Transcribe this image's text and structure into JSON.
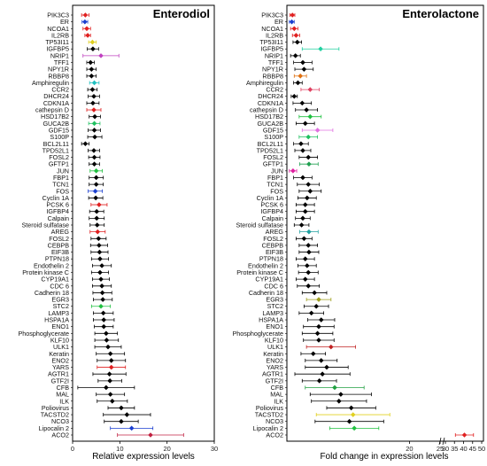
{
  "chart_data": [
    {
      "type": "scatter",
      "title": "Enterodiol",
      "xlabel": "Relative expression levels",
      "xlim": [
        0,
        30
      ],
      "xticks": [
        "0",
        "10",
        "20",
        "30"
      ],
      "categories": [
        "PIK3C3",
        "ER",
        "NCOA1",
        "IL2RB",
        "TP53I11",
        "IGFBP5",
        "NRIP1",
        "TFF1",
        "NPY1R",
        "RBBP8",
        "Amphiregulin",
        "CCR2",
        "DHCR24",
        "CDKN1A",
        "cathepsin D",
        "HSD17B2",
        "GUCA2B",
        "GDF15",
        "S100P",
        "BCL2L11",
        "TPD52L1",
        "FOSL2",
        "GFTP1",
        "JUN",
        "FBP1",
        "TCN1",
        "FOS",
        "Cyclin 1A",
        "PCSK 6",
        "IGFBP4",
        "Calpain",
        "Steroid sulfatase",
        "AREG",
        "FOSL2",
        "CEBPB",
        "EIF3B",
        "PTPN18",
        "Endothelin 2",
        "Protein kinase C",
        "CYP19A1",
        "CDC 6",
        "Cadherin 18",
        "EGR3",
        "STC2",
        "LAMP3",
        "HSPA1A",
        "ENO1",
        "Phosphoglycerate",
        "KLF10",
        "ULK1",
        "Keratin",
        "ENO2",
        "YARS",
        "AGTR1",
        "GTF2I",
        "CFB",
        "MAL",
        "ILK",
        "Poliovirus",
        "TACSTD2",
        "NCO3",
        "Lipocalin 2",
        "ACO2"
      ],
      "values": [
        2.7,
        2.6,
        3.0,
        3.2,
        4.2,
        4.3,
        6.0,
        3.8,
        4.0,
        4.0,
        4.6,
        4.2,
        4.5,
        4.3,
        4.5,
        4.7,
        4.6,
        4.6,
        4.7,
        2.7,
        4.5,
        4.6,
        4.6,
        5.0,
        5.0,
        5.0,
        4.8,
        4.9,
        5.6,
        5.1,
        5.1,
        5.2,
        5.3,
        5.5,
        5.6,
        5.7,
        5.8,
        6.2,
        5.8,
        6.0,
        6.2,
        6.3,
        6.4,
        6.0,
        6.5,
        6.6,
        6.6,
        7.1,
        7.2,
        7.5,
        8.0,
        8.2,
        8.2,
        7.8,
        7.9,
        7.1,
        8.0,
        8.4,
        10.3,
        11.5,
        10.3,
        12.5,
        16.5
      ],
      "err": [
        0.8,
        0.6,
        0.8,
        0.6,
        0.8,
        1.2,
        3.8,
        0.8,
        1.0,
        1.0,
        1.0,
        1.0,
        1.2,
        1.3,
        1.5,
        1.2,
        1.2,
        1.3,
        1.5,
        0.8,
        1.2,
        1.2,
        1.1,
        1.3,
        1.5,
        1.5,
        1.5,
        1.5,
        1.7,
        1.5,
        1.6,
        1.5,
        1.6,
        1.6,
        1.8,
        1.8,
        1.8,
        2.0,
        1.8,
        1.8,
        2.0,
        2.0,
        2.0,
        2.0,
        2.1,
        2.2,
        2.0,
        2.4,
        2.5,
        2.8,
        3.0,
        3.0,
        3.0,
        3.5,
        2.5,
        6.0,
        3.0,
        3.2,
        2.8,
        5.0,
        3.6,
        4.5,
        7.0
      ],
      "colors": [
        "#e02020",
        "#1a3fd0",
        "#e02020",
        "#e02020",
        "#e0d020",
        "#000000",
        "#c040c0",
        "#000000",
        "#000000",
        "#000000",
        "#20c0c0",
        "#000000",
        "#000000",
        "#000000",
        "#e02020",
        "#000000",
        "#20c060",
        "#000000",
        "#000000",
        "#000000",
        "#000000",
        "#000000",
        "#000000",
        "#20c040",
        "#000000",
        "#000000",
        "#1a3fd0",
        "#000000",
        "#e02020",
        "#000000",
        "#000000",
        "#000000",
        "#e02020",
        "#000000",
        "#000000",
        "#000000",
        "#000000",
        "#000000",
        "#000000",
        "#000000",
        "#000000",
        "#000000",
        "#000000",
        "#20c040",
        "#000000",
        "#000000",
        "#000000",
        "#000000",
        "#000000",
        "#000000",
        "#000000",
        "#000000",
        "#e02020",
        "#000000",
        "#000000",
        "#000000",
        "#000000",
        "#000000",
        "#000000",
        "#000000",
        "#000000",
        "#1a3fd0",
        "#c02040"
      ],
      "grid": false
    },
    {
      "type": "scatter",
      "title": "Enterolactone",
      "xlabel": "Fold change in expression levels",
      "xlim": [
        0,
        50
      ],
      "broken_axis": [
        25,
        30
      ],
      "xticks": [
        "20",
        "25",
        "30",
        "35",
        "40",
        "45",
        "50"
      ],
      "categories": [
        "PIK3C3",
        "ER",
        "NCOA1",
        "IL2RB",
        "TP53I11",
        "IGFBP5",
        "NRIP1",
        "TFF1",
        "NPY1R",
        "RBBP8",
        "Amphiregulin",
        "CCR2",
        "DHCR24",
        "CDKN1A",
        "cathepsin D",
        "HSD17B2",
        "GUCA2B",
        "GDF15",
        "S100P",
        "BCL2L11",
        "TPD52L1",
        "FOSL2",
        "GFTP1",
        "JUN",
        "FBP1",
        "TCN1",
        "FOS",
        "Cyclin 1A",
        "PCSK 6",
        "IGFBP4",
        "Calpain",
        "Steroid sulfatase",
        "AREG",
        "FOSL2",
        "CEBPB",
        "EIF3B",
        "PTPN18",
        "Endothelin 2",
        "Protein kinase C",
        "CYP19A1",
        "CDC 6",
        "Cadherin 18",
        "EGR3",
        "STC2",
        "LAMP3",
        "HSPA1A",
        "ENO1",
        "Phosphoglycerate",
        "KLF10",
        "ULK1",
        "Keratin",
        "ENO2",
        "YARS",
        "AGTR1",
        "GTF2I",
        "CFB",
        "MAL",
        "ILK",
        "Poliovirus",
        "TACSTD2",
        "NCO3",
        "Lipocalin 2",
        "ACO2"
      ],
      "values": [
        0.9,
        0.8,
        1.2,
        1.5,
        1.7,
        5.5,
        1.4,
        2.6,
        2.8,
        2.2,
        1.8,
        3.8,
        1.2,
        2.5,
        3.2,
        3.8,
        3.0,
        5.0,
        3.5,
        2.3,
        2.6,
        3.5,
        3.6,
        1.0,
        2.6,
        3.5,
        3.8,
        3.3,
        3.0,
        3.0,
        2.6,
        2.4,
        3.6,
        2.8,
        3.5,
        3.6,
        3.0,
        3.3,
        3.5,
        3.0,
        3.5,
        4.5,
        5.2,
        4.8,
        4.0,
        5.6,
        5.2,
        5.0,
        5.2,
        7.2,
        4.3,
        5.6,
        6.5,
        5.8,
        5.3,
        7.8,
        8.8,
        8.5,
        10.5,
        10.8,
        10.2,
        11.0,
        40.5
      ],
      "err": [
        0.4,
        0.4,
        0.6,
        0.6,
        0.7,
        3.0,
        0.8,
        1.5,
        1.5,
        1.0,
        0.7,
        1.5,
        0.5,
        1.5,
        1.8,
        1.8,
        1.5,
        2.5,
        1.5,
        1.2,
        1.3,
        1.5,
        1.5,
        0.6,
        1.5,
        1.8,
        1.8,
        1.5,
        1.5,
        1.5,
        1.2,
        1.2,
        1.5,
        1.3,
        1.5,
        1.6,
        1.5,
        1.5,
        1.6,
        1.5,
        1.8,
        2.0,
        2.0,
        2.0,
        2.0,
        2.2,
        2.5,
        2.5,
        2.5,
        4.0,
        2.0,
        2.6,
        3.5,
        4.5,
        2.8,
        4.8,
        5.0,
        4.5,
        4.0,
        6.0,
        5.6,
        4.0,
        5.0
      ],
      "colors": [
        "#e02020",
        "#1a3fd0",
        "#e02020",
        "#e02020",
        "#000000",
        "#20d0a0",
        "#000000",
        "#000000",
        "#000000",
        "#e07010",
        "#000000",
        "#e04060",
        "#000000",
        "#000000",
        "#000000",
        "#20c040",
        "#000000",
        "#e070e0",
        "#20c060",
        "#000000",
        "#000000",
        "#000000",
        "#20a050",
        "#e020a0",
        "#000000",
        "#000000",
        "#000000",
        "#000000",
        "#000000",
        "#000000",
        "#000000",
        "#000000",
        "#20a0a0",
        "#000000",
        "#000000",
        "#000000",
        "#000000",
        "#000000",
        "#000000",
        "#000000",
        "#000000",
        "#000000",
        "#a0a020",
        "#000000",
        "#000000",
        "#000000",
        "#000000",
        "#000000",
        "#000000",
        "#c02020",
        "#000000",
        "#000000",
        "#000000",
        "#000000",
        "#000000",
        "#20a040",
        "#000000",
        "#000000",
        "#000000",
        "#e0d020",
        "#000000",
        "#20c040",
        "#e02020"
      ],
      "grid": false
    }
  ]
}
